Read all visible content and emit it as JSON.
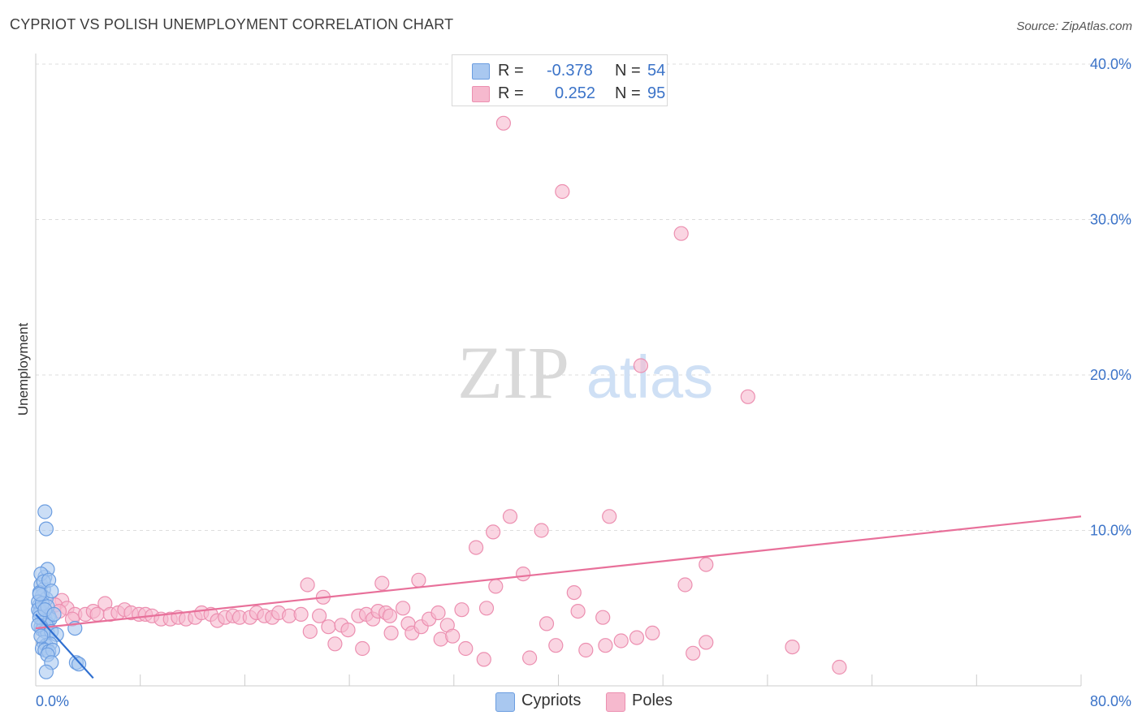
{
  "title": "CYPRIOT VS POLISH UNEMPLOYMENT CORRELATION CHART",
  "source": "Source: ZipAtlas.com",
  "watermark": {
    "zip": "ZIP",
    "atlas": "atlas"
  },
  "stats": {
    "cypriots": {
      "r_label": "R =",
      "r_value": "-0.378",
      "n_label": "N =",
      "n_value": "54"
    },
    "poles": {
      "r_label": "R =",
      "r_value": "0.252",
      "n_label": "N =",
      "n_value": "95"
    }
  },
  "legend": {
    "cypriots": "Cypriots",
    "poles": "Poles"
  },
  "colors": {
    "cypriots_fill": "#a9c8f0",
    "cypriots_stroke": "#6b9de0",
    "cypriots_line": "#2f6fd0",
    "poles_fill": "#f6b9ce",
    "poles_stroke": "#ec8fb0",
    "poles_line": "#e8709a",
    "tick_label": "#3b73c8",
    "grid": "#dddddd"
  },
  "chart_data": {
    "type": "scatter",
    "title": "CYPRIOT VS POLISH UNEMPLOYMENT CORRELATION CHART",
    "xlabel": "",
    "ylabel": "Unemployment",
    "xlim": [
      0,
      80
    ],
    "ylim": [
      0,
      42
    ],
    "x_tick_labels": [
      {
        "value": 0,
        "label": "0.0%"
      },
      {
        "value": 80,
        "label": "80.0%"
      }
    ],
    "y_tick_labels": [
      {
        "value": 10,
        "label": "10.0%"
      },
      {
        "value": 20,
        "label": "20.0%"
      },
      {
        "value": 30,
        "label": "30.0%"
      },
      {
        "value": 40,
        "label": "40.0%"
      }
    ],
    "series": [
      {
        "name": "Cypriots",
        "points": [
          [
            0.4,
            6.5
          ],
          [
            0.6,
            6.2
          ],
          [
            0.7,
            7.0
          ],
          [
            0.9,
            7.5
          ],
          [
            0.5,
            5.8
          ],
          [
            0.3,
            5.2
          ],
          [
            0.8,
            5.6
          ],
          [
            0.5,
            5.0
          ],
          [
            0.4,
            4.8
          ],
          [
            0.6,
            4.6
          ],
          [
            0.7,
            4.4
          ],
          [
            0.3,
            4.7
          ],
          [
            1.0,
            4.5
          ],
          [
            0.5,
            4.2
          ],
          [
            0.9,
            4.0
          ],
          [
            0.6,
            4.1
          ],
          [
            1.1,
            4.3
          ],
          [
            0.8,
            3.9
          ],
          [
            0.4,
            3.8
          ],
          [
            0.5,
            3.6
          ],
          [
            0.7,
            3.5
          ],
          [
            0.9,
            3.4
          ],
          [
            1.2,
            3.5
          ],
          [
            1.6,
            3.3
          ],
          [
            0.6,
            2.8
          ],
          [
            0.8,
            2.6
          ],
          [
            1.1,
            2.7
          ],
          [
            0.5,
            2.4
          ],
          [
            0.7,
            2.3
          ],
          [
            1.0,
            2.2
          ],
          [
            1.3,
            2.3
          ],
          [
            0.9,
            2.0
          ],
          [
            1.2,
            1.5
          ],
          [
            0.8,
            0.9
          ],
          [
            3.1,
            1.5
          ],
          [
            3.3,
            1.4
          ],
          [
            3.0,
            3.7
          ],
          [
            0.8,
            10.1
          ],
          [
            0.7,
            11.2
          ],
          [
            0.4,
            7.2
          ],
          [
            0.3,
            6.0
          ],
          [
            0.2,
            5.4
          ],
          [
            0.2,
            4.9
          ],
          [
            0.3,
            4.4
          ],
          [
            0.2,
            3.9
          ],
          [
            0.4,
            3.2
          ],
          [
            0.6,
            6.7
          ],
          [
            1.0,
            6.8
          ],
          [
            1.2,
            6.1
          ],
          [
            0.5,
            5.3
          ],
          [
            0.9,
            5.1
          ],
          [
            0.7,
            4.9
          ],
          [
            1.4,
            4.6
          ],
          [
            0.3,
            5.9
          ]
        ],
        "trend": {
          "x": [
            0,
            4.4
          ],
          "y": [
            4.6,
            0.5
          ]
        }
      },
      {
        "name": "Poles",
        "points": [
          [
            35.8,
            36.2
          ],
          [
            40.3,
            31.8
          ],
          [
            49.4,
            29.1
          ],
          [
            46.3,
            20.6
          ],
          [
            54.5,
            18.6
          ],
          [
            36.3,
            10.9
          ],
          [
            43.9,
            10.9
          ],
          [
            35.0,
            9.9
          ],
          [
            38.7,
            10.0
          ],
          [
            33.7,
            8.9
          ],
          [
            51.3,
            7.8
          ],
          [
            37.3,
            7.2
          ],
          [
            29.3,
            6.8
          ],
          [
            26.5,
            6.6
          ],
          [
            20.8,
            6.5
          ],
          [
            35.2,
            6.4
          ],
          [
            49.7,
            6.5
          ],
          [
            41.2,
            6.0
          ],
          [
            22.0,
            5.7
          ],
          [
            2.0,
            5.5
          ],
          [
            1.5,
            5.2
          ],
          [
            2.4,
            5.0
          ],
          [
            1.8,
            4.8
          ],
          [
            5.3,
            5.3
          ],
          [
            3.0,
            4.6
          ],
          [
            3.8,
            4.6
          ],
          [
            4.4,
            4.8
          ],
          [
            4.7,
            4.6
          ],
          [
            5.7,
            4.6
          ],
          [
            6.3,
            4.7
          ],
          [
            6.8,
            4.9
          ],
          [
            7.3,
            4.7
          ],
          [
            7.9,
            4.6
          ],
          [
            8.4,
            4.6
          ],
          [
            8.9,
            4.5
          ],
          [
            9.6,
            4.3
          ],
          [
            10.3,
            4.3
          ],
          [
            10.9,
            4.4
          ],
          [
            11.5,
            4.3
          ],
          [
            12.2,
            4.4
          ],
          [
            12.7,
            4.7
          ],
          [
            13.4,
            4.6
          ],
          [
            13.9,
            4.2
          ],
          [
            14.5,
            4.4
          ],
          [
            15.1,
            4.5
          ],
          [
            15.6,
            4.4
          ],
          [
            16.4,
            4.4
          ],
          [
            16.9,
            4.7
          ],
          [
            17.5,
            4.5
          ],
          [
            18.1,
            4.4
          ],
          [
            18.6,
            4.7
          ],
          [
            19.4,
            4.5
          ],
          [
            20.3,
            4.6
          ],
          [
            21.0,
            3.5
          ],
          [
            21.7,
            4.5
          ],
          [
            22.4,
            3.8
          ],
          [
            22.9,
            2.7
          ],
          [
            23.4,
            3.9
          ],
          [
            23.9,
            3.6
          ],
          [
            24.7,
            4.5
          ],
          [
            25.3,
            4.6
          ],
          [
            25.8,
            4.3
          ],
          [
            26.2,
            4.8
          ],
          [
            26.8,
            4.7
          ],
          [
            27.1,
            4.5
          ],
          [
            25.0,
            2.4
          ],
          [
            27.2,
            3.4
          ],
          [
            28.1,
            5.0
          ],
          [
            28.5,
            4.0
          ],
          [
            28.8,
            3.4
          ],
          [
            29.5,
            3.8
          ],
          [
            30.1,
            4.3
          ],
          [
            30.8,
            4.7
          ],
          [
            31.0,
            3.0
          ],
          [
            31.5,
            3.9
          ],
          [
            31.9,
            3.2
          ],
          [
            32.6,
            4.9
          ],
          [
            32.9,
            2.4
          ],
          [
            34.3,
            1.7
          ],
          [
            34.5,
            5.0
          ],
          [
            37.8,
            1.8
          ],
          [
            39.1,
            4.0
          ],
          [
            39.8,
            2.6
          ],
          [
            41.5,
            4.8
          ],
          [
            42.1,
            2.3
          ],
          [
            43.4,
            4.4
          ],
          [
            43.6,
            2.6
          ],
          [
            44.8,
            2.9
          ],
          [
            46.0,
            3.1
          ],
          [
            47.2,
            3.4
          ],
          [
            50.3,
            2.1
          ],
          [
            51.3,
            2.8
          ],
          [
            57.9,
            2.5
          ],
          [
            61.5,
            1.2
          ],
          [
            2.8,
            4.3
          ]
        ],
        "trend": {
          "x": [
            0,
            80
          ],
          "y": [
            3.7,
            10.9
          ]
        }
      }
    ]
  }
}
